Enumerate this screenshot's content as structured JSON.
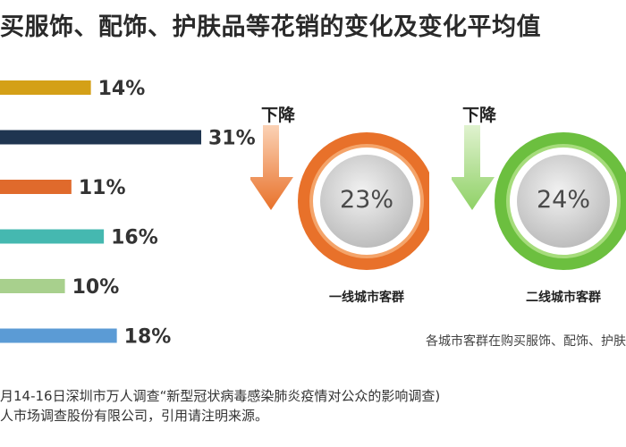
{
  "title": "买服饰、配饰、护肤品等花销的变化及变化平均值",
  "chart_data": {
    "type": "bar",
    "orientation": "horizontal",
    "values": [
      14,
      31,
      11,
      16,
      10,
      18
    ],
    "labels": [
      "14%",
      "31%",
      "11%",
      "16%",
      "10%",
      "18%"
    ],
    "colors": [
      "#d4a017",
      "#1f3550",
      "#e06a2c",
      "#45b8b0",
      "#a8d08d",
      "#5b9bd5"
    ],
    "xlim": [
      0,
      31
    ]
  },
  "rings": [
    {
      "down_label": "下降",
      "value_label": "23%",
      "name": "一线城市客群",
      "color": "#e8712a",
      "color_light": "#f4a46a"
    },
    {
      "down_label": "下降",
      "value_label": "24%",
      "name": "二线城市客群",
      "color": "#6cbf3f",
      "color_light": "#a6dc7c"
    }
  ],
  "caption": "各城市客群在购买服饰、配饰、护肤",
  "source": {
    "line1": "月14-16日深圳市万人调查“新型冠状病毒感染肺炎疫情对公众的影响调查)",
    "line2": "人市场调查股份有限公司，引用请注明来源。"
  }
}
